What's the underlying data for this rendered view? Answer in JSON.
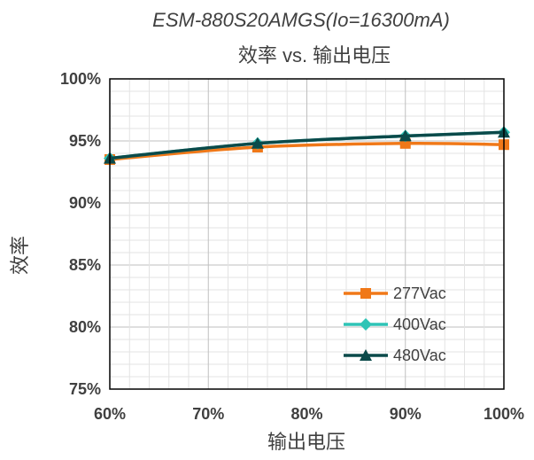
{
  "chart_data": {
    "type": "line",
    "title": "ESM-880S20AMGS(Io=16300mA)",
    "subtitle": "效率 vs. 输出电压",
    "xlabel": "输出电压",
    "ylabel": "效率",
    "x": [
      "60%",
      "75%",
      "90%",
      "100%"
    ],
    "x_values": [
      60,
      75,
      90,
      100
    ],
    "xlim": [
      60,
      100
    ],
    "ylim": [
      75,
      100
    ],
    "x_ticks": [
      "60%",
      "70%",
      "80%",
      "90%",
      "100%"
    ],
    "y_ticks": [
      "75%",
      "80%",
      "85%",
      "90%",
      "95%",
      "100%"
    ],
    "grid": true,
    "legend_position": "bottom-right",
    "series": [
      {
        "name": "277Vac",
        "color": "#f07818",
        "marker": "square",
        "values": [
          93.5,
          94.5,
          94.8,
          94.7
        ]
      },
      {
        "name": "400Vac",
        "color": "#2ec4b6",
        "marker": "diamond",
        "values": [
          93.6,
          94.8,
          95.4,
          95.7
        ]
      },
      {
        "name": "480Vac",
        "color": "#0b4a4a",
        "marker": "triangle",
        "values": [
          93.6,
          94.8,
          95.4,
          95.7
        ]
      }
    ]
  }
}
